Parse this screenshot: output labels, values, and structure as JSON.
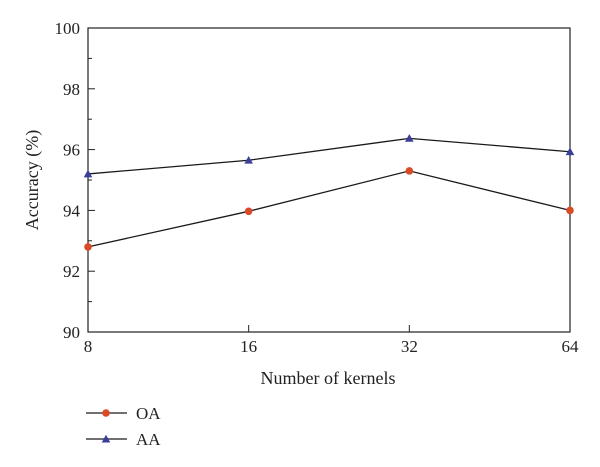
{
  "chart_data": {
    "type": "line",
    "x_categories": [
      "8",
      "16",
      "32",
      "64"
    ],
    "xlabel": "Number of kernels",
    "ylabel": "Accuracy (%)",
    "ylim": [
      90,
      100
    ],
    "yticks": [
      "90",
      "92",
      "94",
      "96",
      "98",
      "100"
    ],
    "grid": false,
    "legend_position": "bottom-left",
    "series": [
      {
        "name": "OA",
        "marker": "circle",
        "marker_color": "#d94a26",
        "line_color": "#1a1a1a",
        "values": [
          92.8,
          93.97,
          95.3,
          94.0
        ]
      },
      {
        "name": "AA",
        "marker": "triangle",
        "marker_color": "#3a3f9a",
        "line_color": "#1a1a1a",
        "values": [
          95.2,
          95.65,
          96.37,
          95.93
        ]
      }
    ]
  }
}
